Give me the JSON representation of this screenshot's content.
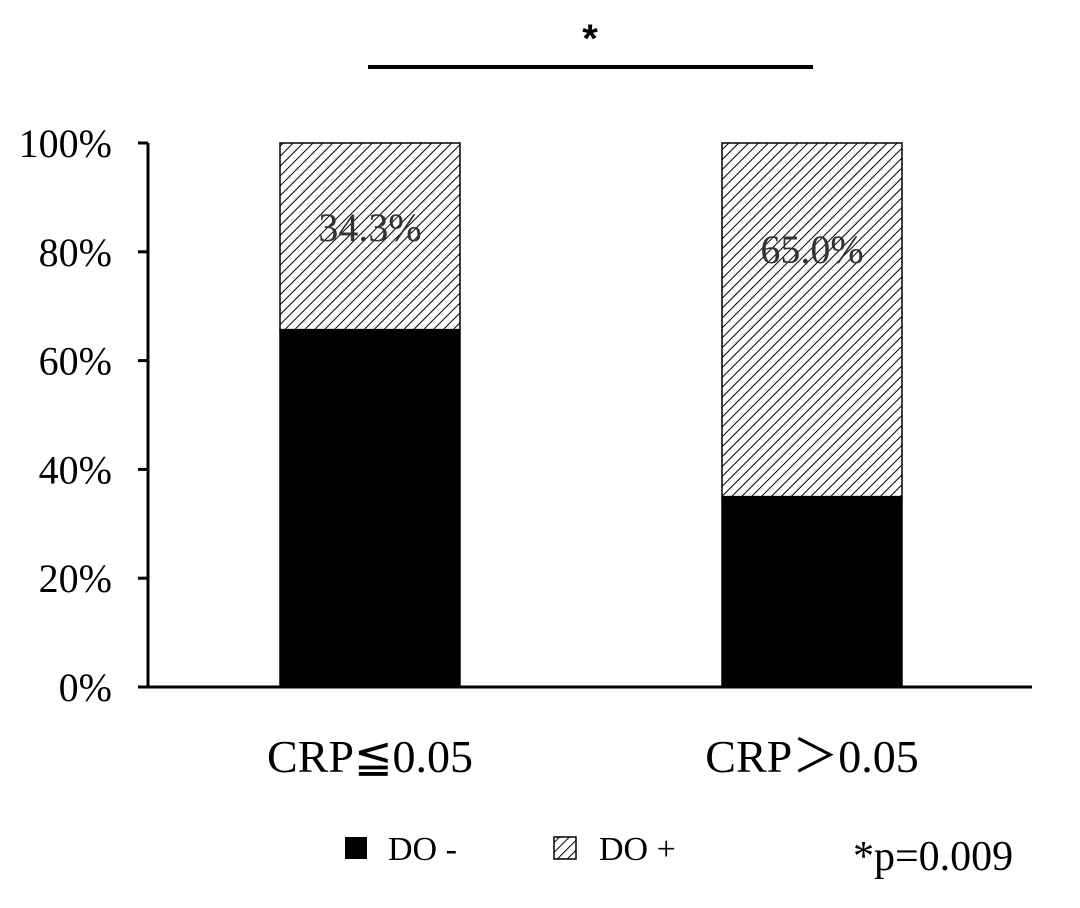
{
  "chart_data": {
    "type": "bar",
    "stacked": true,
    "percent": true,
    "categories": [
      "CRP≦0.05",
      "CRP＞0.05"
    ],
    "series": [
      {
        "name": "DO -",
        "values": [
          65.7,
          35.0
        ],
        "pattern": "solid",
        "color": "#000000"
      },
      {
        "name": "DO +",
        "values": [
          34.3,
          65.0
        ],
        "pattern": "hatched",
        "color": "#000000"
      }
    ],
    "data_labels": [
      "34.3%",
      "65.0%"
    ],
    "ylim": [
      0,
      100
    ],
    "yticks": [
      "0%",
      "20%",
      "40%",
      "60%",
      "80%",
      "100%"
    ],
    "ytick_values": [
      0,
      20,
      40,
      60,
      80,
      100
    ],
    "grid": false,
    "legend": {
      "position": "bottom",
      "entries": [
        "DO -",
        "DO +"
      ]
    },
    "significance": {
      "marker": "*",
      "note": "*p=0.009"
    }
  }
}
